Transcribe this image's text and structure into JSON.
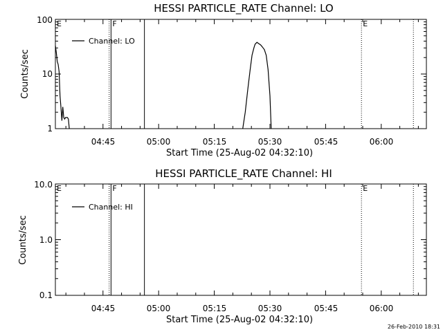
{
  "chart_data": [
    {
      "type": "line",
      "title": "HESSI PARTICLE_RATE Channel: LO",
      "xlabel": "Start Time (25-Aug-02 04:32:10)",
      "ylabel": "Counts/sec",
      "yscale": "log",
      "ylim": [
        1,
        100
      ],
      "xlim": [
        "04:32:10",
        "06:12:10"
      ],
      "x_ticks": [
        "04:45",
        "05:00",
        "05:15",
        "05:30",
        "05:45",
        "06:00"
      ],
      "y_ticks": [
        "1",
        "10",
        "100"
      ],
      "legend": {
        "position": "top-left",
        "entries": [
          "Channel: LO"
        ]
      },
      "grid": false,
      "markers": [
        {
          "label": "E",
          "time": "04:32:10",
          "style": "none"
        },
        {
          "label": "",
          "time": "04:46:40",
          "style": "dotted"
        },
        {
          "label": "F",
          "time": "04:47:10",
          "style": "solid"
        },
        {
          "label": "",
          "time": "04:56:10",
          "style": "solid"
        },
        {
          "label": "E",
          "time": "05:54:40",
          "style": "dotted"
        },
        {
          "label": "",
          "time": "06:08:40",
          "style": "dotted"
        }
      ],
      "series": [
        {
          "name": "Channel: LO",
          "segments": [
            {
              "x": [
                "04:32:10",
                "04:32:25",
                "04:32:40",
                "04:32:55",
                "04:33:10",
                "04:33:25",
                "04:33:40",
                "04:33:55",
                "04:34:10",
                "04:34:25",
                "04:34:40",
                "04:34:55",
                "04:35:10",
                "04:35:25",
                "04:35:40",
                "04:35:55"
              ],
              "y": [
                33,
                25,
                17,
                15,
                11,
                4,
                2.5,
                1.4,
                2.5,
                1.6,
                1.5,
                1.6,
                1.6,
                1.6,
                1.5,
                1
              ]
            },
            {
              "x": [
                "05:22:40",
                "05:23:20",
                "05:24:00",
                "05:24:40",
                "05:25:10",
                "05:25:40",
                "05:26:00",
                "05:26:30",
                "05:27:00",
                "05:27:30",
                "05:28:00",
                "05:28:30",
                "05:29:00",
                "05:29:30",
                "05:30:00",
                "05:30:20"
              ],
              "y": [
                1,
                2,
                5,
                12,
                22,
                30,
                35,
                38,
                36,
                34,
                31,
                28,
                22,
                12,
                4,
                1
              ]
            }
          ]
        }
      ]
    },
    {
      "type": "line",
      "title": "HESSI PARTICLE_RATE Channel: HI",
      "xlabel": "Start Time (25-Aug-02 04:32:10)",
      "ylabel": "Counts/sec",
      "yscale": "log",
      "ylim": [
        0.1,
        10
      ],
      "xlim": [
        "04:32:10",
        "06:12:10"
      ],
      "x_ticks": [
        "04:45",
        "05:00",
        "05:15",
        "05:30",
        "05:45",
        "06:00"
      ],
      "y_ticks": [
        "0.1",
        "1.0",
        "10.0"
      ],
      "legend": {
        "position": "top-left",
        "entries": [
          "Channel: HI"
        ]
      },
      "grid": false,
      "markers": [
        {
          "label": "E",
          "time": "04:32:10",
          "style": "none"
        },
        {
          "label": "",
          "time": "04:46:40",
          "style": "dotted"
        },
        {
          "label": "F",
          "time": "04:47:10",
          "style": "solid"
        },
        {
          "label": "",
          "time": "04:56:10",
          "style": "solid"
        },
        {
          "label": "E",
          "time": "05:54:40",
          "style": "dotted"
        },
        {
          "label": "",
          "time": "06:08:40",
          "style": "dotted"
        }
      ],
      "series": [
        {
          "name": "Channel: HI",
          "segments": []
        }
      ]
    }
  ],
  "footer": {
    "timestamp": "26-Feb-2010 18:31"
  }
}
